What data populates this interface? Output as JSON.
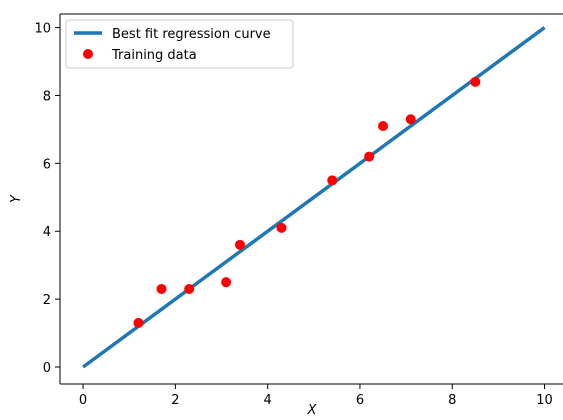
{
  "chart_data": {
    "type": "scatter",
    "title": "",
    "xlabel": "X",
    "ylabel": "Y",
    "xlim": [
      -0.5,
      10.4
    ],
    "ylim": [
      -0.5,
      10.4
    ],
    "xticks": [
      0,
      2,
      4,
      6,
      8,
      10
    ],
    "yticks": [
      0,
      2,
      4,
      6,
      8,
      10
    ],
    "grid": false,
    "legend_position": "top-left",
    "series": [
      {
        "name": "Best fit regression curve",
        "kind": "line",
        "color": "#1f77b4",
        "x": [
          0,
          10
        ],
        "y": [
          0,
          10
        ]
      },
      {
        "name": "Training data",
        "kind": "scatter",
        "color": "#ff0000",
        "x": [
          1.2,
          1.7,
          2.3,
          3.1,
          3.4,
          4.3,
          5.4,
          6.2,
          6.5,
          7.1,
          8.5
        ],
        "y": [
          1.3,
          2.3,
          2.3,
          2.5,
          3.6,
          4.1,
          5.5,
          6.2,
          7.1,
          7.3,
          8.4
        ]
      }
    ]
  }
}
